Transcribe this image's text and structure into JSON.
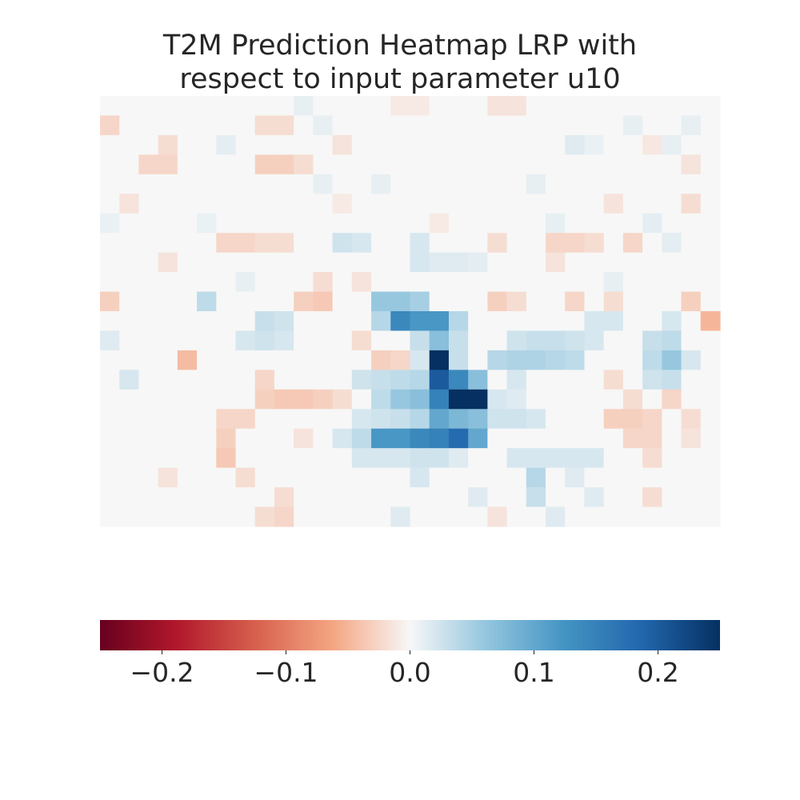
{
  "chart_data": {
    "type": "heatmap",
    "title_lines": [
      "T2M Prediction Heatmap LRP with",
      "respect to input parameter u10"
    ],
    "colormap": "RdBu",
    "colorbar": {
      "orientation": "horizontal",
      "placement": "bottom",
      "vmin": -0.25,
      "vmax": 0.25,
      "ticks": [
        {
          "value": -0.2,
          "label": "−0.2"
        },
        {
          "value": -0.1,
          "label": "−0.1"
        },
        {
          "value": 0.0,
          "label": "0.0"
        },
        {
          "value": 0.1,
          "label": "0.1"
        },
        {
          "value": 0.2,
          "label": "0.2"
        }
      ]
    },
    "grid_shape": [
      22,
      32
    ],
    "background_level": 0.0,
    "cells": [
      {
        "row": 0,
        "col": 10,
        "value": 0.01
      },
      {
        "row": 0,
        "col": 15,
        "value": -0.01
      },
      {
        "row": 0,
        "col": 16,
        "value": -0.01
      },
      {
        "row": 0,
        "col": 20,
        "value": -0.015
      },
      {
        "row": 0,
        "col": 21,
        "value": -0.015
      },
      {
        "row": 1,
        "col": 0,
        "value": -0.025
      },
      {
        "row": 1,
        "col": 8,
        "value": -0.02
      },
      {
        "row": 1,
        "col": 9,
        "value": -0.02
      },
      {
        "row": 1,
        "col": 11,
        "value": 0.01
      },
      {
        "row": 1,
        "col": 27,
        "value": 0.01
      },
      {
        "row": 1,
        "col": 30,
        "value": 0.01
      },
      {
        "row": 2,
        "col": 3,
        "value": -0.02
      },
      {
        "row": 2,
        "col": 6,
        "value": 0.012
      },
      {
        "row": 2,
        "col": 12,
        "value": -0.015
      },
      {
        "row": 2,
        "col": 24,
        "value": 0.015
      },
      {
        "row": 2,
        "col": 25,
        "value": 0.008
      },
      {
        "row": 2,
        "col": 28,
        "value": -0.012
      },
      {
        "row": 2,
        "col": 29,
        "value": 0.01
      },
      {
        "row": 3,
        "col": 2,
        "value": -0.025
      },
      {
        "row": 3,
        "col": 3,
        "value": -0.025
      },
      {
        "row": 3,
        "col": 8,
        "value": -0.03
      },
      {
        "row": 3,
        "col": 9,
        "value": -0.03
      },
      {
        "row": 3,
        "col": 10,
        "value": -0.02
      },
      {
        "row": 3,
        "col": 30,
        "value": -0.015
      },
      {
        "row": 4,
        "col": 11,
        "value": 0.01
      },
      {
        "row": 4,
        "col": 14,
        "value": 0.01
      },
      {
        "row": 4,
        "col": 22,
        "value": 0.01
      },
      {
        "row": 5,
        "col": 1,
        "value": -0.015
      },
      {
        "row": 5,
        "col": 12,
        "value": -0.01
      },
      {
        "row": 5,
        "col": 26,
        "value": -0.015
      },
      {
        "row": 5,
        "col": 30,
        "value": -0.02
      },
      {
        "row": 6,
        "col": 0,
        "value": 0.008
      },
      {
        "row": 6,
        "col": 5,
        "value": 0.008
      },
      {
        "row": 6,
        "col": 17,
        "value": -0.01
      },
      {
        "row": 6,
        "col": 23,
        "value": 0.01
      },
      {
        "row": 6,
        "col": 28,
        "value": 0.012
      },
      {
        "row": 7,
        "col": 6,
        "value": -0.025
      },
      {
        "row": 7,
        "col": 7,
        "value": -0.025
      },
      {
        "row": 7,
        "col": 8,
        "value": -0.02
      },
      {
        "row": 7,
        "col": 9,
        "value": -0.02
      },
      {
        "row": 7,
        "col": 12,
        "value": 0.025
      },
      {
        "row": 7,
        "col": 13,
        "value": 0.02
      },
      {
        "row": 7,
        "col": 16,
        "value": 0.02
      },
      {
        "row": 7,
        "col": 20,
        "value": -0.02
      },
      {
        "row": 7,
        "col": 23,
        "value": -0.025
      },
      {
        "row": 7,
        "col": 24,
        "value": -0.025
      },
      {
        "row": 7,
        "col": 25,
        "value": -0.02
      },
      {
        "row": 7,
        "col": 27,
        "value": -0.025
      },
      {
        "row": 7,
        "col": 29,
        "value": 0.012
      },
      {
        "row": 8,
        "col": 3,
        "value": -0.015
      },
      {
        "row": 8,
        "col": 16,
        "value": 0.02
      },
      {
        "row": 8,
        "col": 17,
        "value": 0.015
      },
      {
        "row": 8,
        "col": 18,
        "value": 0.015
      },
      {
        "row": 8,
        "col": 19,
        "value": 0.012
      },
      {
        "row": 8,
        "col": 23,
        "value": -0.015
      },
      {
        "row": 9,
        "col": 7,
        "value": 0.01
      },
      {
        "row": 9,
        "col": 11,
        "value": -0.02
      },
      {
        "row": 9,
        "col": 13,
        "value": -0.015
      },
      {
        "row": 9,
        "col": 26,
        "value": 0.01
      },
      {
        "row": 10,
        "col": 0,
        "value": -0.03
      },
      {
        "row": 10,
        "col": 5,
        "value": 0.035
      },
      {
        "row": 10,
        "col": 10,
        "value": -0.03
      },
      {
        "row": 10,
        "col": 11,
        "value": -0.035
      },
      {
        "row": 10,
        "col": 14,
        "value": 0.06
      },
      {
        "row": 10,
        "col": 15,
        "value": 0.06
      },
      {
        "row": 10,
        "col": 16,
        "value": 0.05
      },
      {
        "row": 10,
        "col": 20,
        "value": -0.03
      },
      {
        "row": 10,
        "col": 21,
        "value": -0.02
      },
      {
        "row": 10,
        "col": 24,
        "value": -0.025
      },
      {
        "row": 10,
        "col": 26,
        "value": -0.02
      },
      {
        "row": 10,
        "col": 30,
        "value": -0.03
      },
      {
        "row": 11,
        "col": 8,
        "value": 0.03
      },
      {
        "row": 11,
        "col": 9,
        "value": 0.025
      },
      {
        "row": 11,
        "col": 14,
        "value": 0.04
      },
      {
        "row": 11,
        "col": 15,
        "value": 0.14
      },
      {
        "row": 11,
        "col": 16,
        "value": 0.12
      },
      {
        "row": 11,
        "col": 17,
        "value": 0.12
      },
      {
        "row": 11,
        "col": 18,
        "value": 0.04
      },
      {
        "row": 11,
        "col": 25,
        "value": 0.02
      },
      {
        "row": 11,
        "col": 26,
        "value": 0.02
      },
      {
        "row": 11,
        "col": 29,
        "value": 0.02
      },
      {
        "row": 11,
        "col": 31,
        "value": -0.05
      },
      {
        "row": 12,
        "col": 0,
        "value": 0.015
      },
      {
        "row": 12,
        "col": 7,
        "value": 0.02
      },
      {
        "row": 12,
        "col": 8,
        "value": 0.025
      },
      {
        "row": 12,
        "col": 9,
        "value": 0.02
      },
      {
        "row": 12,
        "col": 13,
        "value": -0.02
      },
      {
        "row": 12,
        "col": 16,
        "value": 0.03
      },
      {
        "row": 12,
        "col": 17,
        "value": 0.07
      },
      {
        "row": 12,
        "col": 18,
        "value": 0.03
      },
      {
        "row": 12,
        "col": 21,
        "value": 0.025
      },
      {
        "row": 12,
        "col": 22,
        "value": 0.03
      },
      {
        "row": 12,
        "col": 23,
        "value": 0.03
      },
      {
        "row": 12,
        "col": 24,
        "value": 0.025
      },
      {
        "row": 12,
        "col": 25,
        "value": 0.02
      },
      {
        "row": 12,
        "col": 28,
        "value": 0.03
      },
      {
        "row": 12,
        "col": 29,
        "value": 0.035
      },
      {
        "row": 13,
        "col": 4,
        "value": -0.045
      },
      {
        "row": 13,
        "col": 14,
        "value": -0.03
      },
      {
        "row": 13,
        "col": 15,
        "value": -0.025
      },
      {
        "row": 13,
        "col": 16,
        "value": 0.02
      },
      {
        "row": 13,
        "col": 17,
        "value": 0.25
      },
      {
        "row": 13,
        "col": 18,
        "value": 0.03
      },
      {
        "row": 13,
        "col": 20,
        "value": 0.04
      },
      {
        "row": 13,
        "col": 21,
        "value": 0.045
      },
      {
        "row": 13,
        "col": 22,
        "value": 0.045
      },
      {
        "row": 13,
        "col": 23,
        "value": 0.04
      },
      {
        "row": 13,
        "col": 24,
        "value": 0.035
      },
      {
        "row": 13,
        "col": 28,
        "value": 0.035
      },
      {
        "row": 13,
        "col": 29,
        "value": 0.06
      },
      {
        "row": 13,
        "col": 30,
        "value": 0.02
      },
      {
        "row": 14,
        "col": 1,
        "value": 0.02
      },
      {
        "row": 14,
        "col": 8,
        "value": -0.025
      },
      {
        "row": 14,
        "col": 13,
        "value": 0.025
      },
      {
        "row": 14,
        "col": 14,
        "value": 0.03
      },
      {
        "row": 14,
        "col": 15,
        "value": 0.035
      },
      {
        "row": 14,
        "col": 16,
        "value": 0.04
      },
      {
        "row": 14,
        "col": 17,
        "value": 0.2
      },
      {
        "row": 14,
        "col": 18,
        "value": 0.14
      },
      {
        "row": 14,
        "col": 19,
        "value": 0.07
      },
      {
        "row": 14,
        "col": 21,
        "value": 0.02
      },
      {
        "row": 14,
        "col": 26,
        "value": -0.02
      },
      {
        "row": 14,
        "col": 28,
        "value": 0.025
      },
      {
        "row": 14,
        "col": 29,
        "value": 0.03
      },
      {
        "row": 15,
        "col": 8,
        "value": -0.03
      },
      {
        "row": 15,
        "col": 9,
        "value": -0.035
      },
      {
        "row": 15,
        "col": 10,
        "value": -0.035
      },
      {
        "row": 15,
        "col": 11,
        "value": -0.03
      },
      {
        "row": 15,
        "col": 12,
        "value": -0.02
      },
      {
        "row": 15,
        "col": 14,
        "value": 0.035
      },
      {
        "row": 15,
        "col": 15,
        "value": 0.06
      },
      {
        "row": 15,
        "col": 16,
        "value": 0.07
      },
      {
        "row": 15,
        "col": 17,
        "value": 0.15
      },
      {
        "row": 15,
        "col": 18,
        "value": 0.25
      },
      {
        "row": 15,
        "col": 19,
        "value": 0.25
      },
      {
        "row": 15,
        "col": 20,
        "value": 0.02
      },
      {
        "row": 15,
        "col": 21,
        "value": 0.015
      },
      {
        "row": 15,
        "col": 27,
        "value": -0.02
      },
      {
        "row": 15,
        "col": 29,
        "value": -0.025
      },
      {
        "row": 16,
        "col": 6,
        "value": -0.025
      },
      {
        "row": 16,
        "col": 7,
        "value": -0.025
      },
      {
        "row": 16,
        "col": 13,
        "value": 0.02
      },
      {
        "row": 16,
        "col": 14,
        "value": 0.025
      },
      {
        "row": 16,
        "col": 15,
        "value": 0.03
      },
      {
        "row": 16,
        "col": 16,
        "value": 0.04
      },
      {
        "row": 16,
        "col": 17,
        "value": 0.1
      },
      {
        "row": 16,
        "col": 18,
        "value": 0.08
      },
      {
        "row": 16,
        "col": 19,
        "value": 0.07
      },
      {
        "row": 16,
        "col": 20,
        "value": 0.025
      },
      {
        "row": 16,
        "col": 21,
        "value": 0.025
      },
      {
        "row": 16,
        "col": 22,
        "value": 0.02
      },
      {
        "row": 16,
        "col": 26,
        "value": -0.03
      },
      {
        "row": 16,
        "col": 27,
        "value": -0.03
      },
      {
        "row": 16,
        "col": 28,
        "value": -0.025
      },
      {
        "row": 16,
        "col": 30,
        "value": -0.02
      },
      {
        "row": 17,
        "col": 6,
        "value": -0.03
      },
      {
        "row": 17,
        "col": 10,
        "value": -0.015
      },
      {
        "row": 17,
        "col": 12,
        "value": 0.02
      },
      {
        "row": 17,
        "col": 13,
        "value": 0.035
      },
      {
        "row": 17,
        "col": 14,
        "value": 0.12
      },
      {
        "row": 17,
        "col": 15,
        "value": 0.12
      },
      {
        "row": 17,
        "col": 16,
        "value": 0.14
      },
      {
        "row": 17,
        "col": 17,
        "value": 0.15
      },
      {
        "row": 17,
        "col": 18,
        "value": 0.18
      },
      {
        "row": 17,
        "col": 19,
        "value": 0.1
      },
      {
        "row": 17,
        "col": 27,
        "value": -0.025
      },
      {
        "row": 17,
        "col": 28,
        "value": -0.025
      },
      {
        "row": 17,
        "col": 30,
        "value": -0.015
      },
      {
        "row": 18,
        "col": 6,
        "value": -0.035
      },
      {
        "row": 18,
        "col": 13,
        "value": 0.02
      },
      {
        "row": 18,
        "col": 14,
        "value": 0.02
      },
      {
        "row": 18,
        "col": 15,
        "value": 0.02
      },
      {
        "row": 18,
        "col": 16,
        "value": 0.025
      },
      {
        "row": 18,
        "col": 17,
        "value": 0.025
      },
      {
        "row": 18,
        "col": 18,
        "value": 0.015
      },
      {
        "row": 18,
        "col": 21,
        "value": 0.02
      },
      {
        "row": 18,
        "col": 22,
        "value": 0.02
      },
      {
        "row": 18,
        "col": 23,
        "value": 0.02
      },
      {
        "row": 18,
        "col": 24,
        "value": 0.02
      },
      {
        "row": 18,
        "col": 25,
        "value": 0.02
      },
      {
        "row": 18,
        "col": 28,
        "value": -0.02
      },
      {
        "row": 19,
        "col": 3,
        "value": -0.015
      },
      {
        "row": 19,
        "col": 7,
        "value": -0.02
      },
      {
        "row": 19,
        "col": 16,
        "value": 0.02
      },
      {
        "row": 19,
        "col": 22,
        "value": 0.04
      },
      {
        "row": 19,
        "col": 24,
        "value": 0.015
      },
      {
        "row": 20,
        "col": 9,
        "value": -0.02
      },
      {
        "row": 20,
        "col": 19,
        "value": 0.015
      },
      {
        "row": 20,
        "col": 22,
        "value": 0.03
      },
      {
        "row": 20,
        "col": 25,
        "value": 0.015
      },
      {
        "row": 20,
        "col": 28,
        "value": -0.02
      },
      {
        "row": 21,
        "col": 8,
        "value": -0.02
      },
      {
        "row": 21,
        "col": 9,
        "value": -0.025
      },
      {
        "row": 21,
        "col": 15,
        "value": 0.015
      },
      {
        "row": 21,
        "col": 20,
        "value": -0.015
      },
      {
        "row": 21,
        "col": 23,
        "value": 0.015
      }
    ]
  }
}
